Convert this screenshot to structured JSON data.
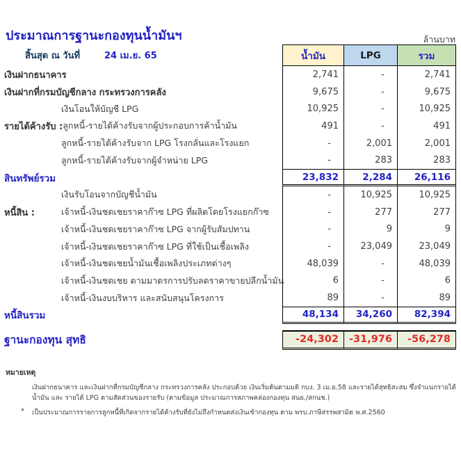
{
  "page": {
    "title": "ประมาณการฐานะกองทุนน้ำมันฯ",
    "unit_label": "ล้านบาท",
    "as_of_label": "สิ้นสุด ณ วันที่",
    "as_of_date": "24 เม.ย. 65"
  },
  "table": {
    "columns": {
      "oil": "น้ำมัน",
      "lpg": "LPG",
      "total": "รวม"
    },
    "rows": [
      {
        "label": "เงินฝากธนาคาร",
        "sub": "",
        "values": [
          "2,741",
          "-",
          "2,741"
        ]
      },
      {
        "label": "เงินฝากที่กรมบัญชีกลาง กระทรวงการคลัง",
        "sub": "",
        "values": [
          "9,675",
          "-",
          "9,675"
        ]
      },
      {
        "label": "",
        "sub": "เงินโอนให้บัญชี LPG",
        "values": [
          "10,925",
          "-",
          "10,925"
        ]
      },
      {
        "label": "รายได้ค้างรับ :",
        "sub": "ลูกหนี้-รายได้ค้างรับจากผู้ประกอบการค้าน้ำมัน",
        "values": [
          "491",
          "-",
          "491"
        ]
      },
      {
        "label": "",
        "sub": "ลูกหนี้-รายได้ค้างรับจาก LPG โรงกลั่นและโรงแยก",
        "values": [
          "-",
          "2,001",
          "2,001"
        ]
      },
      {
        "label": "",
        "sub": "ลูกหนี้-รายได้ค้างรับจากผู้จำหน่าย LPG",
        "values": [
          "-",
          "283",
          "283"
        ]
      },
      {
        "label": "สินทรัพย์รวม",
        "sub": "",
        "values": [
          "23,832",
          "2,284",
          "26,116"
        ]
      },
      {
        "label": "",
        "sub": "เงินรับโอนจากบัญชีน้ำมัน",
        "values": [
          "-",
          "10,925",
          "10,925"
        ]
      },
      {
        "label": "หนี้สิน :",
        "sub": "เจ้าหนี้-เงินชดเชยราคาก๊าซ LPG  ที่ผลิตโดยโรงแยกก๊าซ",
        "values": [
          "-",
          "277",
          "277"
        ]
      },
      {
        "label": "",
        "sub": "เจ้าหนี้-เงินชดเชยราคาก๊าซ LPG  จากผู้รับสัมปทาน",
        "values": [
          "-",
          "9",
          "9"
        ]
      },
      {
        "label": "",
        "sub": "เจ้าหนี้-เงินชดเชยราคาก๊าซ LPG  ที่ใช้เป็นเชื้อเพลิง",
        "values": [
          "-",
          "23,049",
          "23,049"
        ]
      },
      {
        "label": "",
        "sub": "เจ้าหนี้-เงินชดเชยน้ำมันเชื้อเพลิงประเภทต่างๆ",
        "values": [
          "48,039",
          "-",
          "48,039"
        ]
      },
      {
        "label": "",
        "sub": "เจ้าหนี้-เงินชดเชย ตามมาตรการปรับลดราคาขายปลีกน้ำมัน",
        "values": [
          "6",
          "-",
          "6"
        ]
      },
      {
        "label": "",
        "sub": "เจ้าหนี้-เงินงบบริหาร และสนับสนุนโครงการ",
        "values": [
          "89",
          "-",
          "89"
        ]
      },
      {
        "label": "หนี้สินรวม",
        "sub": "",
        "values": [
          "48,134",
          "34,260",
          "82,394"
        ]
      },
      {
        "label": "ฐานะกองทุน สุทธิ",
        "sub": "",
        "values": [
          "-24,302",
          "-31,976",
          "-56,278"
        ]
      }
    ]
  },
  "notes": {
    "heading": "หมายเหตุ",
    "items": [
      {
        "marker": "",
        "text": "เงินฝากธนาคาร และเงินฝากที่กรมบัญชีกลาง กระทรวงการคลัง ประกอบด้วย เงินเริ่มต้นตามมติ กบง. 3 เม.ย.58 และรายได้สุทธิสะสม ซึ่งจำแนกรายได้น้ำมัน และ รายได้ LPG  ตามสัดส่วนของรายรับ (ตามข้อมูล ประมาณการสภาพคล่องกองทุน สนย./สกนช.)"
      },
      {
        "marker": "*",
        "text": "เป็นประมาณการรายการลูกหนี้ที่เกิดจากรายได้ค้างรับที่ยังไม่ถึงกำหนดส่งเงินเข้ากองทุน ตาม พรบ.ภาษีสรรพสามิต พ.ศ.2560"
      }
    ]
  },
  "colors": {
    "accent_blue": "#2424C4",
    "negative_red": "#E02B2B",
    "header_oil_bg": "#FFF2CC",
    "header_lpg_bg": "#BDD7EE",
    "header_total_bg": "#C6E0B4",
    "net_row_bg": "#EBF1DE"
  }
}
